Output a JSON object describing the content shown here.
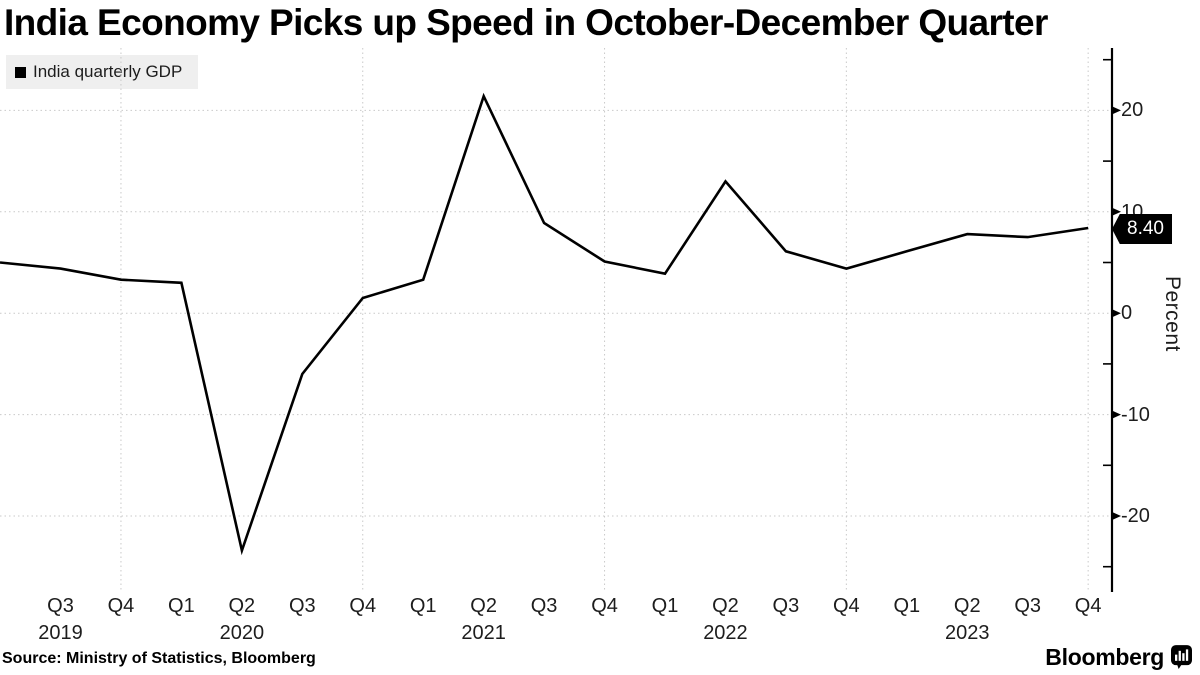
{
  "title": "India Economy Picks up Speed in October-December Quarter",
  "legend": {
    "label": "India quarterly GDP"
  },
  "source": "Source: Ministry of Statistics, Bloomberg",
  "branding": {
    "wordmark": "Bloomberg",
    "icon": "bloomberg-terminal-icon"
  },
  "colors": {
    "line": "#000000",
    "axis": "#000000",
    "grid": "#c9c9c9",
    "legend_bg": "#efefef",
    "badge_bg": "#000000",
    "badge_text": "#ffffff"
  },
  "chart_data": {
    "type": "line",
    "title": "India Economy Picks up Speed in October-December Quarter",
    "legend_label": "India quarterly GDP",
    "ylabel": "Percent",
    "ylim": [
      -27,
      26
    ],
    "grid": "dotted",
    "legend_position": "top-left",
    "y_axis_side": "right",
    "yticks_major": [
      20,
      10,
      0,
      -10,
      -20
    ],
    "ytick_labels": [
      "20",
      "10",
      "0",
      "-10",
      "-20"
    ],
    "yticks_minor": [
      25,
      15,
      5,
      -5,
      -15,
      -25
    ],
    "vertical_grid_on_quarter": "Q4",
    "x_axis": [
      {
        "q": "Q3",
        "year": "2019"
      },
      {
        "q": "Q4"
      },
      {
        "q": "Q1"
      },
      {
        "q": "Q2",
        "year": "2020"
      },
      {
        "q": "Q3"
      },
      {
        "q": "Q4"
      },
      {
        "q": "Q1"
      },
      {
        "q": "Q2",
        "year": "2021"
      },
      {
        "q": "Q3"
      },
      {
        "q": "Q4"
      },
      {
        "q": "Q1"
      },
      {
        "q": "Q2",
        "year": "2022"
      },
      {
        "q": "Q3"
      },
      {
        "q": "Q4"
      },
      {
        "q": "Q1"
      },
      {
        "q": "Q2",
        "year": "2023"
      },
      {
        "q": "Q3"
      },
      {
        "q": "Q4"
      }
    ],
    "series": [
      {
        "name": "India quarterly GDP",
        "values": [
          4.4,
          3.3,
          3.0,
          -23.4,
          -6.0,
          1.5,
          3.3,
          21.4,
          8.9,
          5.1,
          3.9,
          13.0,
          6.1,
          4.4,
          6.1,
          7.8,
          7.5,
          8.4
        ],
        "leading_edge_value": 5.0
      }
    ],
    "end_label": "8.40"
  }
}
